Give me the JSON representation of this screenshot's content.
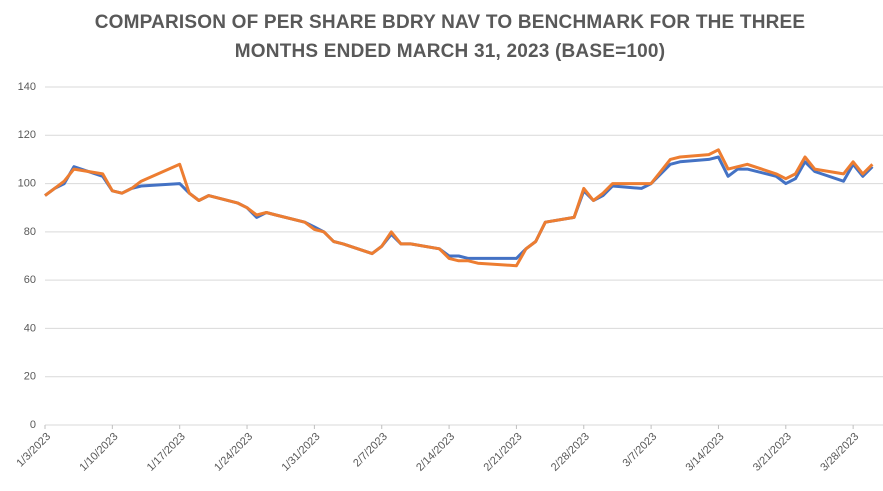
{
  "chart_data": {
    "type": "line",
    "title": "COMPARISON OF PER SHARE BDRY NAV TO BENCHMARK FOR THE THREE MONTHS ENDED MARCH 31, 2023 (BASE=100)",
    "x": [
      "1/3/2023",
      "1/4/2023",
      "1/5/2023",
      "1/6/2023",
      "1/9/2023",
      "1/10/2023",
      "1/11/2023",
      "1/12/2023",
      "1/13/2023",
      "1/17/2023",
      "1/18/2023",
      "1/19/2023",
      "1/20/2023",
      "1/23/2023",
      "1/24/2023",
      "1/25/2023",
      "1/26/2023",
      "1/27/2023",
      "1/30/2023",
      "1/31/2023",
      "2/1/2023",
      "2/2/2023",
      "2/3/2023",
      "2/6/2023",
      "2/7/2023",
      "2/8/2023",
      "2/9/2023",
      "2/10/2023",
      "2/13/2023",
      "2/14/2023",
      "2/15/2023",
      "2/16/2023",
      "2/17/2023",
      "2/21/2023",
      "2/22/2023",
      "2/23/2023",
      "2/24/2023",
      "2/27/2023",
      "2/28/2023",
      "3/1/2023",
      "3/2/2023",
      "3/3/2023",
      "3/6/2023",
      "3/7/2023",
      "3/8/2023",
      "3/9/2023",
      "3/10/2023",
      "3/13/2023",
      "3/14/2023",
      "3/15/2023",
      "3/16/2023",
      "3/17/2023",
      "3/20/2023",
      "3/21/2023",
      "3/22/2023",
      "3/23/2023",
      "3/24/2023",
      "3/27/2023",
      "3/28/2023",
      "3/29/2023",
      "3/30/2023"
    ],
    "series": [
      {
        "color": "#4472c4",
        "values": [
          95,
          98,
          100,
          107,
          103,
          97,
          96,
          98,
          99,
          100,
          96,
          93,
          95,
          92,
          90,
          86,
          88,
          87,
          84,
          82,
          80,
          76,
          75,
          71,
          74,
          79,
          75,
          75,
          73,
          70,
          70,
          69,
          69,
          69,
          73,
          76,
          84,
          86,
          97,
          93,
          95,
          99,
          98,
          100,
          104,
          108,
          109,
          110,
          111,
          103,
          106,
          106,
          103,
          100,
          102,
          109,
          105,
          101,
          108,
          103,
          107
        ]
      },
      {
        "color": "#ed7d31",
        "values": [
          95,
          98,
          101,
          106,
          104,
          97,
          96,
          98,
          101,
          108,
          96,
          93,
          95,
          92,
          90,
          87,
          88,
          87,
          84,
          81,
          80,
          76,
          75,
          71,
          74,
          80,
          75,
          75,
          73,
          69,
          68,
          68,
          67,
          66,
          73,
          76,
          84,
          86,
          98,
          93,
          96,
          100,
          100,
          100,
          105,
          110,
          111,
          112,
          114,
          106,
          107,
          108,
          104,
          102,
          104,
          111,
          106,
          104,
          109,
          104,
          108
        ]
      }
    ],
    "xlim": [
      "1/3/2023",
      "3/31/2023"
    ],
    "xticks": [
      "1/3/2023",
      "1/10/2023",
      "1/17/2023",
      "1/24/2023",
      "1/31/2023",
      "2/7/2023",
      "2/14/2023",
      "2/21/2023",
      "2/28/2023",
      "3/7/2023",
      "3/14/2023",
      "3/21/2023",
      "3/28/2023"
    ],
    "ylim": [
      0,
      140
    ],
    "yticks": [
      0,
      20,
      40,
      60,
      80,
      100,
      120,
      140
    ],
    "grid": true
  }
}
